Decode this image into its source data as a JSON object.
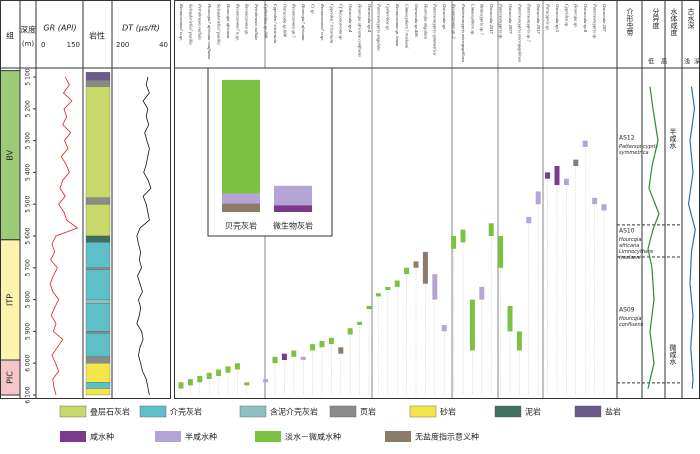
{
  "header": {
    "formation": "组",
    "depth": "深度",
    "depth_unit": "(m)",
    "gr": "GR (API)",
    "gr_min": "0",
    "gr_max": "150",
    "lithology": "岩性",
    "dt": "DT (μs/ft)",
    "dt_left": "200",
    "dt_right": "40",
    "zone": "介形虫带",
    "diversity": "分异度",
    "diversity_low": "低",
    "diversity_high": "高",
    "salinity": "水体咸度",
    "water_depth": "古水深",
    "shallow": "浅",
    "deep": "深"
  },
  "depth_axis": {
    "lim": [
      5100,
      6100
    ],
    "ticks": [
      {
        "value": 5100,
        "label": "5 100"
      },
      {
        "value": 5200,
        "label": "5 200"
      },
      {
        "value": 5300,
        "label": "5 300"
      },
      {
        "value": 5400,
        "label": "5 400"
      },
      {
        "value": 5500,
        "label": "5 500"
      },
      {
        "value": 5600,
        "label": "5 600"
      },
      {
        "value": 5700,
        "label": "5 700"
      },
      {
        "value": 5800,
        "label": "5 800"
      },
      {
        "value": 5900,
        "label": "5 900"
      },
      {
        "value": 6000,
        "label": "6 000"
      },
      {
        "value": 6100,
        "label": "6 100"
      }
    ]
  },
  "formations": [
    {
      "name": "BV",
      "top": 5080,
      "bottom": 5612,
      "color": "#9ccb78"
    },
    {
      "name": "ITP",
      "top": 5612,
      "bottom": 5990,
      "color": "#fdf3ae"
    },
    {
      "name": "PIC",
      "top": 5990,
      "bottom": 6100,
      "color": "#f4c6c9"
    }
  ],
  "gr": {
    "lim": [
      0,
      150
    ],
    "color": "#e0201b",
    "depth": [
      5100,
      5125,
      5150,
      5175,
      5200,
      5225,
      5250,
      5275,
      5300,
      5325,
      5350,
      5375,
      5400,
      5425,
      5450,
      5475,
      5500,
      5525,
      5550,
      5575,
      5600,
      5625,
      5650,
      5675,
      5700,
      5725,
      5750,
      5775,
      5800,
      5825,
      5850,
      5875,
      5900,
      5925,
      5950,
      5975,
      6000,
      6025,
      6050,
      6075,
      6100
    ],
    "values": [
      95,
      110,
      88,
      120,
      90,
      100,
      85,
      115,
      92,
      105,
      80,
      98,
      110,
      85,
      75,
      95,
      70,
      90,
      100,
      140,
      60,
      45,
      55,
      40,
      65,
      50,
      38,
      48,
      70,
      55,
      42,
      60,
      50,
      85,
      65,
      45,
      58,
      70,
      48,
      52,
      60
    ]
  },
  "dt": {
    "lim": [
      200,
      40
    ],
    "color": "#111",
    "depth": [
      5100,
      5125,
      5150,
      5175,
      5200,
      5225,
      5250,
      5275,
      5300,
      5325,
      5350,
      5375,
      5400,
      5425,
      5450,
      5475,
      5500,
      5525,
      5550,
      5575,
      5600,
      5625,
      5650,
      5675,
      5700,
      5725,
      5750,
      5775,
      5800,
      5825,
      5850,
      5875,
      5900,
      5925,
      5950,
      5975,
      6000,
      6025,
      6050,
      6075,
      6100
    ],
    "values": [
      95,
      100,
      90,
      110,
      95,
      100,
      92,
      105,
      98,
      90,
      95,
      100,
      108,
      94,
      85,
      110,
      100,
      95,
      90,
      120,
      130,
      125,
      118,
      122,
      115,
      128,
      120,
      112,
      125,
      118,
      122,
      130,
      115,
      110,
      120,
      125,
      118,
      112,
      100,
      95,
      90
    ]
  },
  "lithology": [
    {
      "top": 5085,
      "bottom": 5110,
      "type": 6
    },
    {
      "top": 5110,
      "bottom": 5130,
      "type": 3
    },
    {
      "top": 5130,
      "bottom": 5480,
      "type": 0
    },
    {
      "top": 5480,
      "bottom": 5500,
      "type": 3
    },
    {
      "top": 5500,
      "bottom": 5600,
      "type": 0
    },
    {
      "top": 5600,
      "bottom": 5620,
      "type": 5
    },
    {
      "top": 5620,
      "bottom": 5700,
      "type": 1
    },
    {
      "top": 5700,
      "bottom": 5706,
      "type": 3
    },
    {
      "top": 5706,
      "bottom": 5800,
      "type": 1
    },
    {
      "top": 5800,
      "bottom": 5812,
      "type": 2
    },
    {
      "top": 5812,
      "bottom": 5900,
      "type": 1
    },
    {
      "top": 5900,
      "bottom": 5906,
      "type": 3
    },
    {
      "top": 5906,
      "bottom": 5980,
      "type": 1
    },
    {
      "top": 5980,
      "bottom": 6000,
      "type": 3
    },
    {
      "top": 6000,
      "bottom": 6060,
      "type": 4
    },
    {
      "top": 6060,
      "bottom": 6080,
      "type": 1
    },
    {
      "top": 6080,
      "bottom": 6100,
      "type": 4
    }
  ],
  "species": [
    "Reconcavona? n.sp.",
    "Salvadoriella? pusilla",
    "Petrobrasia vallida",
    "Hourcqia? africana confluens",
    "Salvadoriella? pusilla",
    "Hourcqia africana",
    "Reconcavona? n.sp.",
    "Reconcavona sp.",
    "Petrobrasia vallida",
    "Cytheridea sp.198",
    "Cypridea? tricornuta",
    "Ostracoda sp.604",
    "Reconcavona sp.?",
    "Hourcqia? africana",
    "Ct sp.",
    "Reconcavona? n.sp.",
    "Cypridea? tricornuta",
    "Cf Reconcavona sp.",
    "Ostracoda sp.4",
    "Hourcqia africana confluens",
    "Ostracoda sp.4",
    "Pattersoncypris angulata",
    "Cytheridea sp.",
    "Reconcavona sp. lonza",
    "Limnocythere? troelseni",
    "Ostracoda sp.406",
    "Hourcqia angulata",
    "Pattersoncypris symmetrica",
    "Ostracoda sp.",
    "Reconcavona sp. 2",
    "Pattersoncypris micropapillosa",
    "Limnocythere sp.",
    "Bentocypris sp.?",
    "Ostracoda 2017",
    "Pattersoncypris sp.",
    "Ostracoda 2077",
    "Pattersoncypris micropapillosa",
    "Pattersoncypris sp.?",
    "Ostracoda 2017",
    "Paracypris sp.",
    "Ostracoda sp.5",
    "Cypridea sp.",
    "Hourcqia sp.",
    "Ostracoda sp.8",
    "Pattersoncypris sp.",
    "Ostracoda 207"
  ],
  "occurrences": [
    {
      "species": 0,
      "top": 6060,
      "bottom": 6080,
      "category": 2
    },
    {
      "species": 1,
      "top": 6050,
      "bottom": 6070,
      "category": 2
    },
    {
      "species": 2,
      "top": 6040,
      "bottom": 6060,
      "category": 2
    },
    {
      "species": 3,
      "top": 6030,
      "bottom": 6050,
      "category": 2
    },
    {
      "species": 4,
      "top": 6020,
      "bottom": 6040,
      "category": 2
    },
    {
      "species": 5,
      "top": 6010,
      "bottom": 6030,
      "category": 2
    },
    {
      "species": 6,
      "top": 6000,
      "bottom": 6020,
      "category": 2
    },
    {
      "species": 7,
      "top": 6060,
      "bottom": 6070,
      "category": 2
    },
    {
      "species": 9,
      "top": 6050,
      "bottom": 6060,
      "category": 1
    },
    {
      "species": 10,
      "top": 5980,
      "bottom": 6000,
      "category": 2
    },
    {
      "species": 11,
      "top": 5970,
      "bottom": 5990,
      "category": 0
    },
    {
      "species": 12,
      "top": 5960,
      "bottom": 5980,
      "category": 2
    },
    {
      "species": 13,
      "top": 5980,
      "bottom": 5990,
      "category": 1
    },
    {
      "species": 14,
      "top": 5940,
      "bottom": 5960,
      "category": 2
    },
    {
      "species": 15,
      "top": 5930,
      "bottom": 5950,
      "category": 2
    },
    {
      "species": 16,
      "top": 5920,
      "bottom": 5940,
      "category": 2
    },
    {
      "species": 17,
      "top": 5950,
      "bottom": 5970,
      "category": 3
    },
    {
      "species": 18,
      "top": 5890,
      "bottom": 5910,
      "category": 2
    },
    {
      "species": 19,
      "top": 5870,
      "bottom": 5880,
      "category": 2
    },
    {
      "species": 20,
      "top": 5820,
      "bottom": 5830,
      "category": 2
    },
    {
      "species": 21,
      "top": 5780,
      "bottom": 5790,
      "category": 2
    },
    {
      "species": 22,
      "top": 5760,
      "bottom": 5770,
      "category": 2
    },
    {
      "species": 23,
      "top": 5740,
      "bottom": 5760,
      "category": 2
    },
    {
      "species": 24,
      "top": 5700,
      "bottom": 5720,
      "category": 2
    },
    {
      "species": 25,
      "top": 5680,
      "bottom": 5700,
      "category": 3
    },
    {
      "species": 26,
      "top": 5650,
      "bottom": 5750,
      "category": 3
    },
    {
      "species": 27,
      "top": 5720,
      "bottom": 5800,
      "category": 1
    },
    {
      "species": 28,
      "top": 5880,
      "bottom": 5900,
      "category": 1
    },
    {
      "species": 29,
      "top": 5600,
      "bottom": 5640,
      "category": 2
    },
    {
      "species": 30,
      "top": 5580,
      "bottom": 5620,
      "category": 2
    },
    {
      "species": 31,
      "top": 5800,
      "bottom": 5960,
      "category": 2
    },
    {
      "species": 32,
      "top": 5760,
      "bottom": 5800,
      "category": 1
    },
    {
      "species": 33,
      "top": 5560,
      "bottom": 5600,
      "category": 2
    },
    {
      "species": 34,
      "top": 5600,
      "bottom": 5700,
      "category": 2
    },
    {
      "species": 35,
      "top": 5820,
      "bottom": 5900,
      "category": 2
    },
    {
      "species": 36,
      "top": 5900,
      "bottom": 5960,
      "category": 2
    },
    {
      "species": 37,
      "top": 5540,
      "bottom": 5560,
      "category": 1
    },
    {
      "species": 38,
      "top": 5460,
      "bottom": 5500,
      "category": 1
    },
    {
      "species": 39,
      "top": 5400,
      "bottom": 5420,
      "category": 0
    },
    {
      "species": 40,
      "top": 5380,
      "bottom": 5440,
      "category": 0
    },
    {
      "species": 41,
      "top": 5420,
      "bottom": 5440,
      "category": 1
    },
    {
      "species": 42,
      "top": 5360,
      "bottom": 5380,
      "category": 3
    },
    {
      "species": 43,
      "top": 5300,
      "bottom": 5320,
      "category": 1
    },
    {
      "species": 44,
      "top": 5480,
      "bottom": 5500,
      "category": 1
    },
    {
      "species": 45,
      "top": 5500,
      "bottom": 5520,
      "category": 1
    }
  ],
  "inset": {
    "ylim": [
      0,
      140
    ],
    "bars": [
      {
        "label": "贝壳灰岩",
        "segments": [
          {
            "category": 3,
            "value": 9
          },
          {
            "category": 1,
            "value": 10
          },
          {
            "category": 2,
            "value": 117
          }
        ]
      },
      {
        "label": "微生物灰岩",
        "segments": [
          {
            "category": 0,
            "value": 7
          },
          {
            "category": 1,
            "value": 20
          }
        ]
      }
    ]
  },
  "zones": [
    {
      "name": "AS12",
      "taxon": "Pattersoncypris symmetrica",
      "top": 5080,
      "bottom": 5565
    },
    {
      "name": "AS10",
      "taxon": "Hourcqia africana Limnocythere troelseni",
      "top": 5565,
      "bottom": 5666
    },
    {
      "name": "AS09",
      "taxon": "Hourcqia confluens",
      "top": 5666,
      "bottom": 6062
    }
  ],
  "salinity": [
    {
      "label": "半咸水",
      "top": 5080,
      "bottom": 5565
    },
    {
      "label": "微咸水",
      "top": 5565,
      "bottom": 6062
    }
  ],
  "diversity": {
    "color": "#2e8b2e",
    "depth": [
      5130,
      5200,
      5300,
      5380,
      5450,
      5530,
      5580,
      5640,
      5700,
      5800,
      5900,
      6000,
      6080
    ],
    "values": [
      0.3,
      0.45,
      0.7,
      0.4,
      0.25,
      0.75,
      0.45,
      0.2,
      0.4,
      0.5,
      0.3,
      0.5,
      0.2
    ]
  },
  "water_depth": {
    "color": "#2a6fc0",
    "depth": [
      5130,
      5200,
      5300,
      5400,
      5500,
      5580,
      5650,
      5750,
      5850,
      5950,
      6050,
      6080
    ],
    "values": [
      0.5,
      0.7,
      0.4,
      0.6,
      0.3,
      0.75,
      0.5,
      0.4,
      0.6,
      0.45,
      0.6,
      0.55
    ]
  },
  "legend": {
    "lithology": [
      {
        "label": "叠层石灰岩",
        "color": "#c9d86a"
      },
      {
        "label": "介壳灰岩",
        "color": "#5fbfc6"
      },
      {
        "label": "含泥介壳灰岩",
        "color": "#8fc0c0"
      },
      {
        "label": "页岩",
        "color": "#8a8a8a"
      },
      {
        "label": "砂岩",
        "color": "#f3e54a"
      },
      {
        "label": "泥岩",
        "color": "#3f6f5f"
      },
      {
        "label": "盐岩",
        "color": "#6b5a8c"
      }
    ],
    "salinity": [
      {
        "label": "咸水种",
        "color": "#7b3b8c"
      },
      {
        "label": "半咸水种",
        "color": "#b5a5d6"
      },
      {
        "label": "淡水－微咸水种",
        "color": "#7cc242"
      },
      {
        "label": "无盐度指示意义种",
        "color": "#8c7b6b"
      }
    ]
  }
}
